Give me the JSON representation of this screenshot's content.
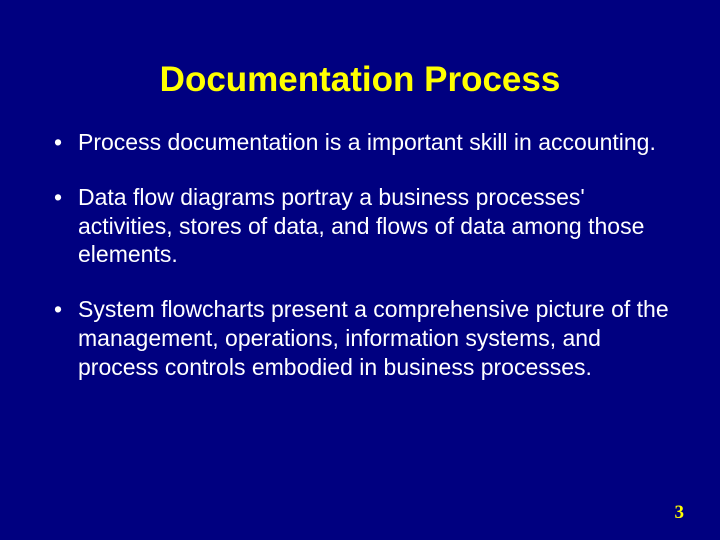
{
  "slide": {
    "background_color": "#000080",
    "title": "Documentation Process",
    "title_color": "#ffff00",
    "title_fontsize": 35,
    "body_color": "#ffffff",
    "body_fontsize": 23,
    "bullets": [
      "Process documentation is a important skill in accounting.",
      "Data flow diagrams portray a business processes' activities, stores of data, and flows of data among those elements.",
      "System flowcharts present a comprehensive picture of the management, operations, information systems, and process controls embodied in business processes."
    ],
    "page_number": "3",
    "page_number_color": "#ffff00"
  }
}
